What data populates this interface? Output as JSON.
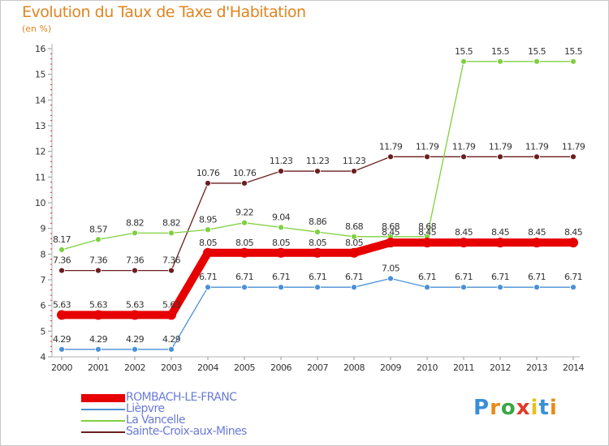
{
  "header": {
    "title": "Evolution du Taux de Taxe d'Habitation",
    "subtitle": "(en %)"
  },
  "brand": {
    "letters": [
      "P",
      "r",
      "o",
      "x",
      "i",
      "t",
      "i"
    ],
    "colors": [
      "#3a8fd6",
      "#e88a1a",
      "#3aa845",
      "#e23a2a",
      "#e6c21a",
      "#3a8fd6",
      "#e88a1a"
    ]
  },
  "chart_data": {
    "type": "line",
    "title": "Evolution du Taux de Taxe d'Habitation",
    "ylabel": "(en %)",
    "xlabel": "",
    "x": [
      "2000",
      "2001",
      "2002",
      "2003",
      "2004",
      "2005",
      "2006",
      "2007",
      "2008",
      "2009",
      "2010",
      "2011",
      "2012",
      "2013",
      "2014"
    ],
    "ylim": [
      4,
      16
    ],
    "yticks": [
      "4",
      "5",
      "6",
      "7",
      "8",
      "9",
      "10",
      "11",
      "12",
      "13",
      "14",
      "15",
      "16"
    ],
    "grid": false,
    "legend": "bottom-left",
    "series": [
      {
        "name": "ROMBACH-LE-FRANC",
        "color": "#e60000",
        "emphasis": true,
        "values": [
          5.63,
          5.63,
          5.63,
          5.63,
          8.05,
          8.05,
          8.05,
          8.05,
          8.05,
          8.45,
          8.45,
          8.45,
          8.45,
          8.45,
          8.45
        ],
        "labels": [
          "5.63",
          "5.63",
          "5.63",
          "5.63",
          "8.05",
          "8.05",
          "8.05",
          "8.05",
          "8.05",
          "8.45",
          "8.45",
          "8.45",
          "8.45",
          "8.45",
          "8.45"
        ]
      },
      {
        "name": "Lièpvre",
        "color": "#4a90d9",
        "emphasis": false,
        "values": [
          4.29,
          4.29,
          4.29,
          4.29,
          6.71,
          6.71,
          6.71,
          6.71,
          6.71,
          7.05,
          6.71,
          6.71,
          6.71,
          6.71,
          6.71
        ],
        "labels": [
          "4.29",
          "4.29",
          "4.29",
          "4.29",
          "6.71",
          "6.71",
          "6.71",
          "6.71",
          "6.71",
          "7.05",
          "6.71",
          "6.71",
          "6.71",
          "6.71",
          "6.71"
        ]
      },
      {
        "name": "La Vancelle",
        "color": "#7fd040",
        "emphasis": false,
        "values": [
          8.17,
          8.57,
          8.82,
          8.82,
          8.95,
          9.22,
          9.04,
          8.86,
          8.68,
          8.68,
          8.68,
          15.5,
          15.5,
          15.5,
          15.5
        ],
        "labels": [
          "8.17",
          "8.57",
          "8.82",
          "8.82",
          "8.95",
          "9.22",
          "9.04",
          "8.86",
          "8.68",
          "8.68",
          "8.68",
          "15.5",
          "15.5",
          "15.5",
          "15.5"
        ]
      },
      {
        "name": "Sainte-Croix-aux-Mines",
        "color": "#6b1e1e",
        "emphasis": false,
        "values": [
          7.36,
          7.36,
          7.36,
          7.36,
          10.76,
          10.76,
          11.23,
          11.23,
          11.23,
          11.79,
          11.79,
          11.79,
          11.79,
          11.79,
          11.79
        ],
        "labels": [
          "7.36",
          "7.36",
          "7.36",
          "7.36",
          "10.76",
          "10.76",
          "11.23",
          "11.23",
          "11.23",
          "11.79",
          "11.79",
          "11.79",
          "11.79",
          "11.79",
          "11.79"
        ]
      }
    ]
  }
}
